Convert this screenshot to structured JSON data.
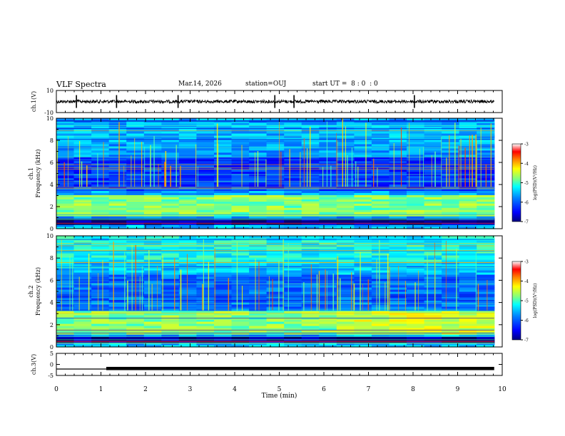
{
  "header": {
    "title": "VLF Spectra",
    "date": "Mar.14, 2026",
    "station_label": "station=",
    "station": "OUJ",
    "start_label": "start UT =",
    "start_h": "8",
    "start_m": "0",
    "start_s": "0"
  },
  "colorbar": {
    "label": "log(PSD)(V²/Hz)",
    "ticks": [
      "-3",
      "-4",
      "-5",
      "-6",
      "-7"
    ],
    "colors": [
      "#000080",
      "#0000ff",
      "#0080ff",
      "#00ffff",
      "#80ff80",
      "#ffff00",
      "#ff8000",
      "#ff0000",
      "#ff8080",
      "#ffffff"
    ]
  },
  "chart_data": [
    {
      "type": "line",
      "panel": "ch1-waveform",
      "ylabel": "ch.1(V)",
      "ylim": [
        -10,
        10
      ],
      "yticks": [
        "10",
        "-10"
      ],
      "xlim": [
        0,
        10
      ],
      "baseline": 0,
      "spike_times": [
        0.45,
        1.35,
        2.73,
        4.9,
        5.33,
        8.03
      ]
    },
    {
      "type": "heatmap",
      "panel": "ch1-spectrogram",
      "ylabel_top": "ch.1",
      "ylabel": "Frequency (kHz)",
      "ylim": [
        0,
        10
      ],
      "yticks": [
        "0",
        "2",
        "4",
        "6",
        "8",
        "10"
      ],
      "xlim": [
        0,
        9.82
      ],
      "zlim": [
        -7,
        -3
      ],
      "intense_band_khz": [
        1.2,
        3.0
      ],
      "dark_band_khz": [
        0.4,
        1.0
      ]
    },
    {
      "type": "heatmap",
      "panel": "ch2-spectrogram",
      "ylabel_top": "ch.2",
      "ylabel": "Frequency (kHz)",
      "ylim": [
        0,
        10
      ],
      "yticks": [
        "0",
        "2",
        "4",
        "6",
        "8",
        "10"
      ],
      "xlim": [
        0,
        9.82
      ],
      "zlim": [
        -7,
        -3
      ],
      "intense_band_khz": [
        1.2,
        3.2
      ],
      "dark_band_khz": [
        0.4,
        0.9
      ]
    },
    {
      "type": "line",
      "panel": "ch3-waveform",
      "ylabel": "ch.3(V)",
      "ylim": [
        -5,
        5
      ],
      "yticks": [
        "5",
        "0",
        "-5"
      ],
      "xlim": [
        0,
        10
      ],
      "level_before": -2.1,
      "level_after": -1.6,
      "step_time": 1.12
    }
  ],
  "xaxis": {
    "label": "Time (min)",
    "ticks": [
      "0",
      "1",
      "2",
      "3",
      "4",
      "5",
      "6",
      "7",
      "8",
      "9",
      "10"
    ]
  }
}
